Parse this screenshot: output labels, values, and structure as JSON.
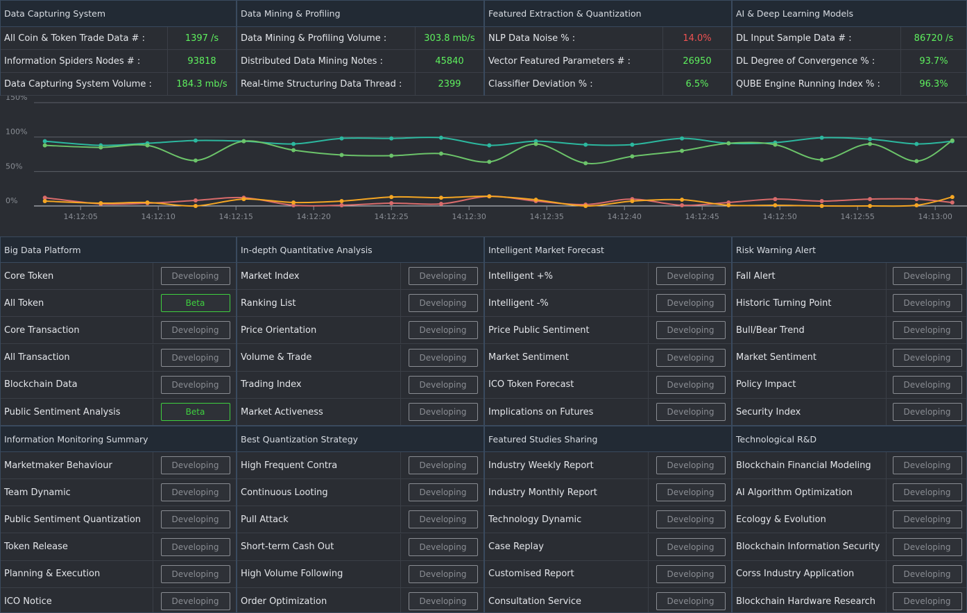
{
  "top_panels": [
    {
      "title": "Data Capturing System",
      "rows": [
        {
          "label": "All Coin & Token Trade Data # :",
          "value": "1397 /s",
          "color": "#5ef05e"
        },
        {
          "label": "Information Spiders Nodes # :",
          "value": "93818",
          "color": "#5ef05e"
        },
        {
          "label": "Data Capturing System Volume :",
          "value": "184.3 mb/s",
          "color": "#5ef05e"
        }
      ]
    },
    {
      "title": "Data Mining & Profiling",
      "rows": [
        {
          "label": "Data Mining & Profiling Volume :",
          "value": "303.8 mb/s",
          "color": "#5ef05e"
        },
        {
          "label": "Distributed Data Mining Notes :",
          "value": "45840",
          "color": "#5ef05e"
        },
        {
          "label": "Real-time Structuring Data Thread :",
          "value": "2399",
          "color": "#5ef05e"
        }
      ]
    },
    {
      "title": "Featured Extraction & Quantization",
      "rows": [
        {
          "label": "NLP Data Noise % :",
          "value": "14.0%",
          "color": "#f05252"
        },
        {
          "label": "Vector Featured Parameters # :",
          "value": "26950",
          "color": "#5ef05e"
        },
        {
          "label": "Classifier Deviation % :",
          "value": "6.5%",
          "color": "#5ef05e"
        }
      ]
    },
    {
      "title": "AI & Deep Learning Models",
      "rows": [
        {
          "label": "DL Input Sample Data # :",
          "value": "86720 /s",
          "color": "#5ef05e"
        },
        {
          "label": "DL Degree of Convergence % :",
          "value": "93.7%",
          "color": "#5ef05e"
        },
        {
          "label": "QUBE Engine Running Index % :",
          "value": "96.3%",
          "color": "#5ef05e"
        }
      ]
    }
  ],
  "chart_data": {
    "type": "line",
    "x": [
      2.7,
      6.3,
      9.3,
      12.4,
      15.5,
      18.7,
      21.8,
      25.0,
      28.2,
      31.3,
      34.3,
      37.5,
      40.5,
      43.7,
      46.7,
      49.7,
      52.7,
      55.8,
      58.8,
      61.1
    ],
    "series": [
      {
        "color": "#2cb89f",
        "values": [
          94,
          88,
          91,
          95,
          94,
          90,
          98,
          98,
          99,
          88,
          94,
          89,
          89,
          98,
          91,
          92,
          99,
          97,
          90,
          94
        ]
      },
      {
        "color": "#6cc46a",
        "values": [
          88,
          85,
          88,
          66,
          94,
          81,
          74,
          73,
          76,
          64,
          90,
          62,
          72,
          80,
          91,
          89,
          67,
          90,
          65,
          95
        ]
      },
      {
        "color": "#d96b6b",
        "values": [
          12,
          3,
          4,
          8,
          12,
          1,
          1,
          4,
          3,
          14,
          7,
          2,
          10,
          1,
          5,
          10,
          7,
          10,
          10,
          5
        ]
      },
      {
        "color": "#f5a623",
        "values": [
          7,
          4,
          5,
          0,
          10,
          5,
          7,
          13,
          12,
          14,
          9,
          0,
          7,
          9,
          1,
          1,
          0,
          0,
          1,
          13
        ]
      }
    ],
    "xlim": [
      2,
      62
    ],
    "xticks": [
      {
        "value": 5,
        "label": "14:12:05"
      },
      {
        "value": 10,
        "label": "14:12:10"
      },
      {
        "value": 15,
        "label": "14:12:15"
      },
      {
        "value": 20,
        "label": "14:12:20"
      },
      {
        "value": 25,
        "label": "14:12:25"
      },
      {
        "value": 30,
        "label": "14:12:30"
      },
      {
        "value": 35,
        "label": "14:12:35"
      },
      {
        "value": 40,
        "label": "14:12:40"
      },
      {
        "value": 45,
        "label": "14:12:45"
      },
      {
        "value": 50,
        "label": "14:12:50"
      },
      {
        "value": 55,
        "label": "14:12:55"
      },
      {
        "value": 60,
        "label": "14:13:00"
      }
    ],
    "ylim": [
      0,
      150
    ],
    "yticks": [
      {
        "value": 0,
        "label": "0%"
      },
      {
        "value": 50,
        "label": "50%"
      },
      {
        "value": 100,
        "label": "100%"
      },
      {
        "value": 150,
        "label": "150%"
      }
    ],
    "grid": true
  },
  "status_colors": {
    "Developing": "#8a8d93",
    "Beta": "#3fd13f"
  },
  "modules": [
    {
      "title": "Big Data Platform",
      "items": [
        [
          "Core Token",
          "Developing"
        ],
        [
          "All Token",
          "Beta"
        ],
        [
          "Core Transaction",
          "Developing"
        ],
        [
          "All Transaction",
          "Developing"
        ],
        [
          "Blockchain Data",
          "Developing"
        ],
        [
          "Public Sentiment Analysis",
          "Beta"
        ]
      ]
    },
    {
      "title": "In-depth Quantitative Analysis",
      "items": [
        [
          "Market Index",
          "Developing"
        ],
        [
          "Ranking List",
          "Developing"
        ],
        [
          "Price Orientation",
          "Developing"
        ],
        [
          "Volume & Trade",
          "Developing"
        ],
        [
          "Trading Index",
          "Developing"
        ],
        [
          "Market Activeness",
          "Developing"
        ]
      ]
    },
    {
      "title": "Intelligent Market Forecast",
      "items": [
        [
          "Intelligent +%",
          "Developing"
        ],
        [
          "Intelligent -%",
          "Developing"
        ],
        [
          "Price Public Sentiment",
          "Developing"
        ],
        [
          "Market Sentiment",
          "Developing"
        ],
        [
          "ICO Token Forecast",
          "Developing"
        ],
        [
          "Implications on Futures",
          "Developing"
        ]
      ]
    },
    {
      "title": "Risk Warning Alert",
      "items": [
        [
          "Fall Alert",
          "Developing"
        ],
        [
          "Historic Turning Point",
          "Developing"
        ],
        [
          "Bull/Bear Trend",
          "Developing"
        ],
        [
          "Market Sentiment",
          "Developing"
        ],
        [
          "Policy Impact",
          "Developing"
        ],
        [
          "Security Index",
          "Developing"
        ]
      ]
    },
    {
      "title": "Information Monitoring Summary",
      "items": [
        [
          "Marketmaker Behaviour",
          "Developing"
        ],
        [
          "Team Dynamic",
          "Developing"
        ],
        [
          "Public Sentiment Quantization",
          "Developing"
        ],
        [
          "Token Release",
          "Developing"
        ],
        [
          "Planning & Execution",
          "Developing"
        ],
        [
          "ICO Notice",
          "Developing"
        ]
      ]
    },
    {
      "title": "Best Quantization Strategy",
      "items": [
        [
          "High Frequent Contra",
          "Developing"
        ],
        [
          "Continuous Looting",
          "Developing"
        ],
        [
          "Pull Attack",
          "Developing"
        ],
        [
          "Short-term Cash Out",
          "Developing"
        ],
        [
          "High Volume Following",
          "Developing"
        ],
        [
          "Order Optimization",
          "Developing"
        ]
      ]
    },
    {
      "title": "Featured Studies Sharing",
      "items": [
        [
          "Industry Weekly Report",
          "Developing"
        ],
        [
          "Industry Monthly Report",
          "Developing"
        ],
        [
          "Technology Dynamic",
          "Developing"
        ],
        [
          "Case Replay",
          "Developing"
        ],
        [
          "Customised Report",
          "Developing"
        ],
        [
          "Consultation Service",
          "Developing"
        ]
      ]
    },
    {
      "title": "Technological R&D",
      "items": [
        [
          "Blockchain Financial Modeling",
          "Developing"
        ],
        [
          "AI Algorithm Optimization",
          "Developing"
        ],
        [
          "Ecology & Evolution",
          "Developing"
        ],
        [
          "Blockchain Information Security",
          "Developing"
        ],
        [
          "Corss Industry Application",
          "Developing"
        ],
        [
          "Blockchain Hardware Research",
          "Developing"
        ]
      ]
    }
  ]
}
